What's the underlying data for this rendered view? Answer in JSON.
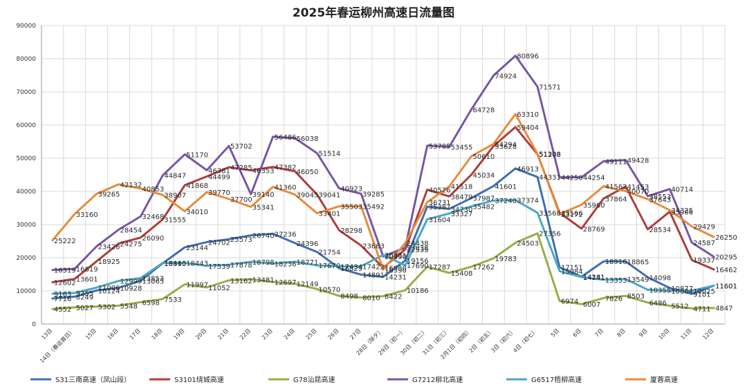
{
  "chart_data": {
    "type": "line",
    "title": "2025年春运柳州高速日流量图",
    "xlabel": "",
    "ylabel": "",
    "ylim": [
      0,
      90000
    ],
    "yticks": [
      "0",
      "10000",
      "20000",
      "30000",
      "40000",
      "50000",
      "60000",
      "70000",
      "80000",
      "90000"
    ],
    "grid": true,
    "legend_position": "bottom",
    "categories": [
      "13日",
      "14日（春运首日）",
      "15日",
      "16日",
      "17日",
      "18日",
      "19日",
      "20日",
      "21日",
      "22日",
      "23日",
      "24日",
      "25日",
      "26日",
      "27日",
      "28日（除夕）",
      "29日（初一）",
      "30日（初二）",
      "31日（初三）",
      "2月1日（初四）",
      "2日（初五）",
      "3日（初六）",
      "4日（初七）",
      "5日",
      "6日",
      "7日",
      "8日",
      "9日",
      "10日",
      "11日",
      "12日"
    ],
    "series": [
      {
        "name": "S31三南高速（凤山段）",
        "color": "#3c6fb0",
        "values": [
          7716,
          8249,
          10124,
          10928,
          13065,
          18310,
          23144,
          24702,
          25573,
          26740,
          27236,
          24396,
          21754,
          16829,
          14891,
          14231,
          19156,
          35387,
          34730,
          37987,
          41601,
          46913,
          44331,
          17151,
          14281,
          18916,
          18865,
          14098,
          10877,
          9101,
          11601
        ]
      },
      {
        "name": "S3101绕城高速",
        "color": "#b03c3c",
        "values": [
          12602,
          13601,
          18925,
          24275,
          26090,
          31555,
          41868,
          44499,
          47285,
          46353,
          47382,
          46050,
          39041,
          28298,
          23663,
          16980,
          22535,
          40526,
          38479,
          45034,
          53628,
          59404,
          51208,
          33566,
          28769,
          37864,
          41453,
          28534,
          33906,
          19337,
          16462
        ]
      },
      {
        "name": "G78汕昆高速",
        "color": "#93b045",
        "values": [
          4552,
          5027,
          5302,
          5548,
          6598,
          7533,
          11997,
          11052,
          13162,
          13481,
          12697,
          12149,
          10570,
          8498,
          8010,
          8422,
          10186,
          17287,
          15408,
          17262,
          19783,
          24503,
          27356,
          6974,
          6007,
          7826,
          8503,
          6486,
          5512,
          4711,
          4847
        ]
      },
      {
        "name": "G7212柳北高速",
        "color": "#7756a5",
        "values": [
          16319,
          16619,
          23428,
          28454,
          32468,
          44847,
          51170,
          46381,
          53702,
          39140,
          56486,
          56038,
          51514,
          40923,
          39285,
          20390,
          23038,
          53785,
          53455,
          64728,
          74924,
          80896,
          71571,
          44250,
          44254,
          49111,
          49428,
          38553,
          40714,
          24587,
          20295
        ]
      },
      {
        "name": "G6517梧柳高速",
        "color": "#4ba7c6",
        "values": [
          9163,
          9355,
          11006,
          12999,
          13853,
          18440,
          18443,
          17539,
          17878,
          18798,
          18236,
          18771,
          17670,
          17434,
          17422,
          20881,
          17690,
          31604,
          33327,
          35482,
          37240,
          37374,
          33568,
          15984,
          14141,
          13353,
          13549,
          10355,
          10004,
          10025,
          11601
        ]
      },
      {
        "name": "厦蓉高速",
        "color": "#e88b3c",
        "values": [
          25222,
          33160,
          39265,
          42132,
          40853,
          38907,
          34010,
          39770,
          37700,
          35341,
          41360,
          39045,
          33401,
          35503,
          35492,
          16390,
          24438,
          36731,
          41518,
          50610,
          54294,
          63310,
          51308,
          33172,
          35960,
          41562,
          40070,
          37643,
          34325,
          29429,
          26250
        ]
      }
    ]
  },
  "legend": {
    "items": [
      {
        "label": "S31三南高速（凤山段）",
        "color": "#3c6fb0"
      },
      {
        "label": "S3101绕城高速",
        "color": "#b03c3c"
      },
      {
        "label": "G78汕昆高速",
        "color": "#93b045"
      },
      {
        "label": "G7212柳北高速",
        "color": "#7756a5"
      },
      {
        "label": "G6517梧柳高速",
        "color": "#4ba7c6"
      },
      {
        "label": "厦蓉高速",
        "color": "#e88b3c"
      }
    ]
  }
}
